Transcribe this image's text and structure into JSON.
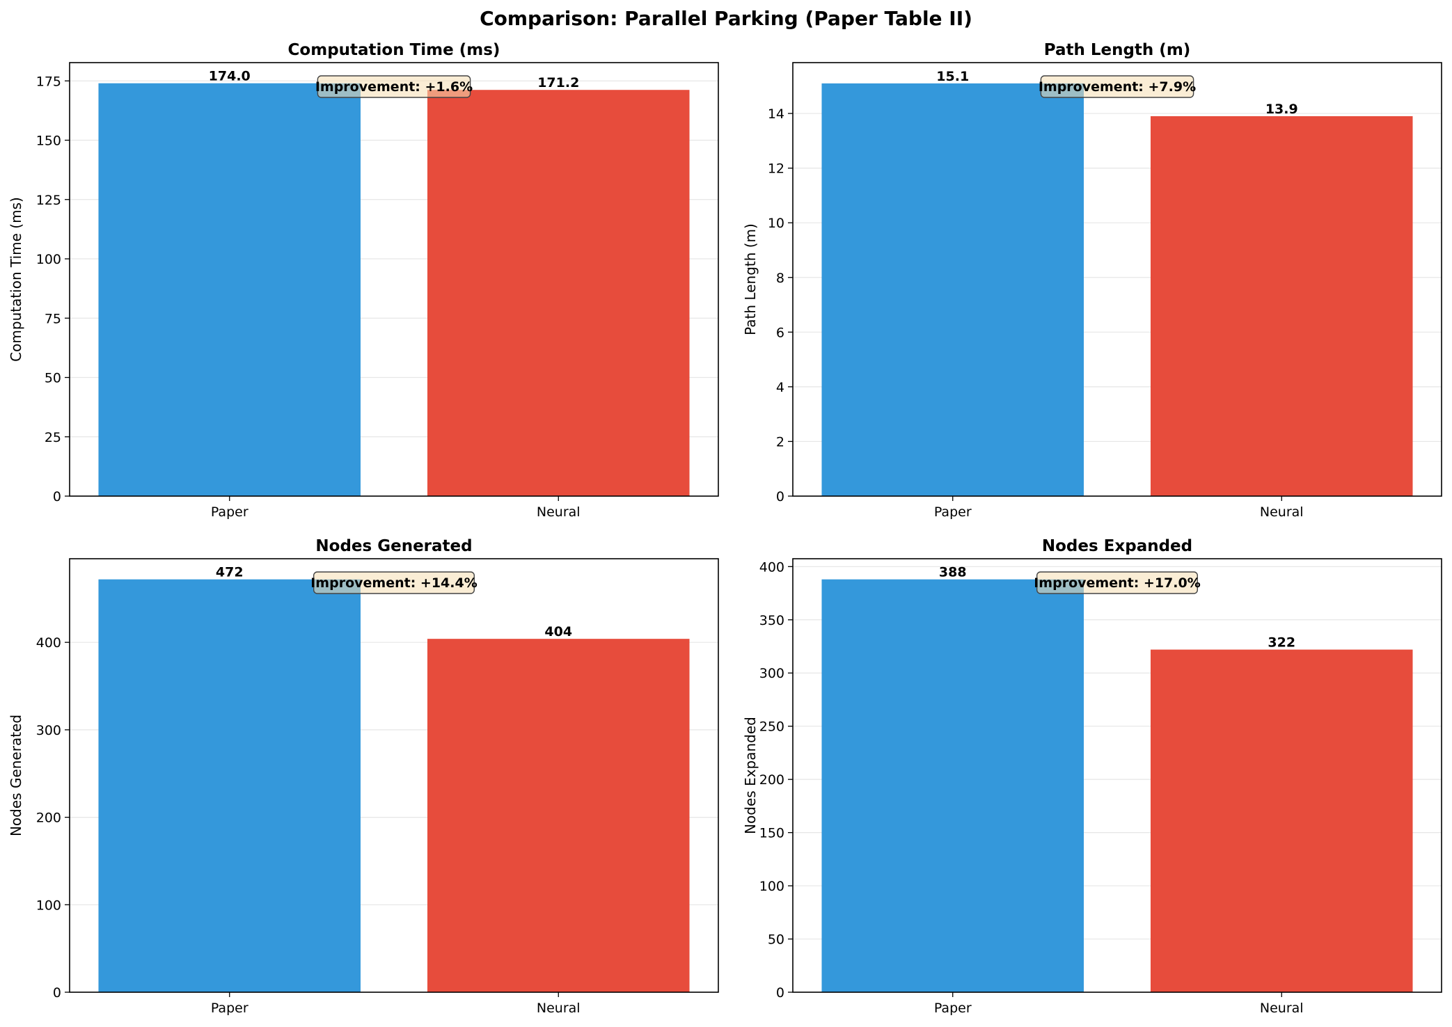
{
  "figure": {
    "title": "Comparison: Parallel Parking (Paper Table II)"
  },
  "colors": {
    "paper": "#3498db",
    "neural": "#e74c3c",
    "annotation_fill": "#f5deb3",
    "annotation_border": "#444444",
    "grid": "#e6e6e6"
  },
  "chart_data": [
    {
      "type": "bar",
      "title": "Computation Time (ms)",
      "ylabel": "Computation Time (ms)",
      "categories": [
        "Paper",
        "Neural"
      ],
      "values": [
        174.0,
        171.2
      ],
      "value_labels": [
        "174.0",
        "171.2"
      ],
      "ylim": [
        0,
        182.7
      ],
      "yticks": [
        0,
        25,
        50,
        75,
        100,
        125,
        150,
        175
      ],
      "annotation": "Improvement: +1.6%",
      "grid": true
    },
    {
      "type": "bar",
      "title": "Path Length (m)",
      "ylabel": "Path Length (m)",
      "categories": [
        "Paper",
        "Neural"
      ],
      "values": [
        15.1,
        13.9
      ],
      "value_labels": [
        "15.1",
        "13.9"
      ],
      "ylim": [
        0,
        15.86
      ],
      "yticks": [
        0,
        2,
        4,
        6,
        8,
        10,
        12,
        14
      ],
      "annotation": "Improvement: +7.9%",
      "grid": true
    },
    {
      "type": "bar",
      "title": "Nodes Generated",
      "ylabel": "Nodes Generated",
      "categories": [
        "Paper",
        "Neural"
      ],
      "values": [
        472,
        404
      ],
      "value_labels": [
        "472",
        "404"
      ],
      "ylim": [
        0,
        495.6
      ],
      "yticks": [
        0,
        100,
        200,
        300,
        400
      ],
      "annotation": "Improvement: +14.4%",
      "grid": true
    },
    {
      "type": "bar",
      "title": "Nodes Expanded",
      "ylabel": "Nodes Expanded",
      "categories": [
        "Paper",
        "Neural"
      ],
      "values": [
        388,
        322
      ],
      "value_labels": [
        "388",
        "322"
      ],
      "ylim": [
        0,
        407.4
      ],
      "yticks": [
        0,
        50,
        100,
        150,
        200,
        250,
        300,
        350,
        400
      ],
      "annotation": "Improvement: +17.0%",
      "grid": true
    }
  ]
}
